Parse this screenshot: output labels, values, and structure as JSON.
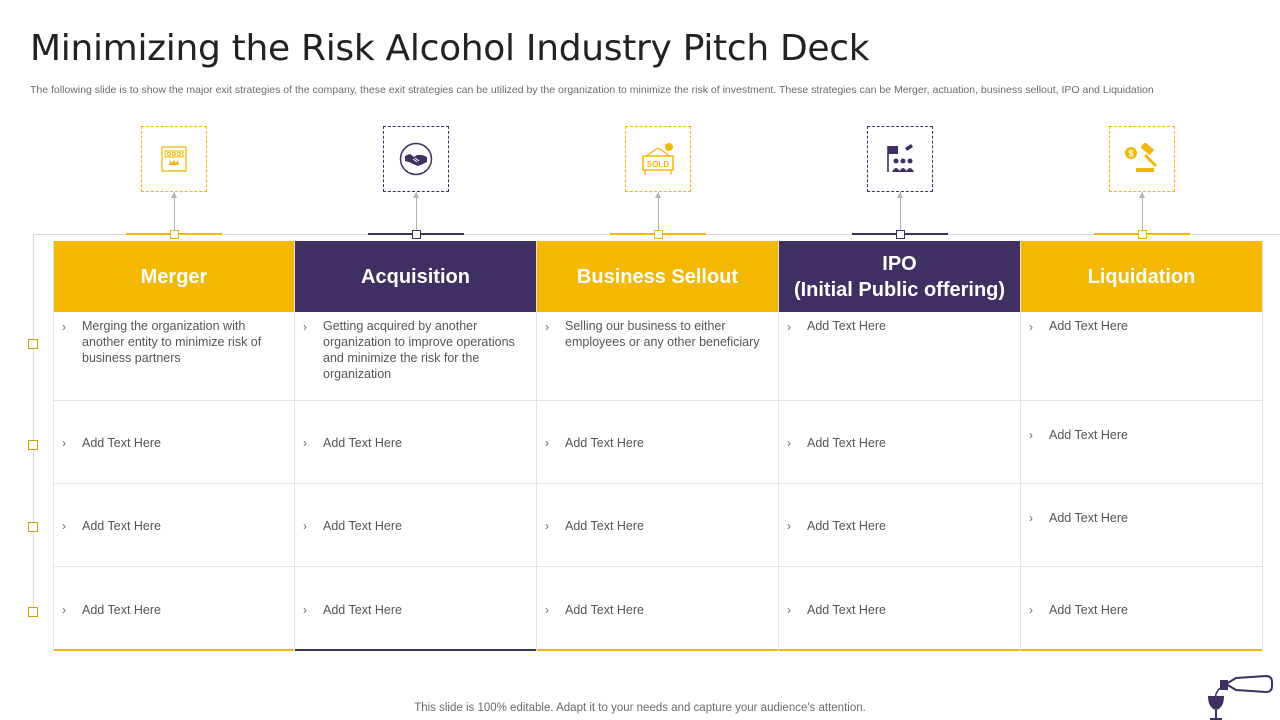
{
  "slide": {
    "title": "Minimizing the Risk Alcohol Industry Pitch Deck",
    "subtitle": "The following slide is to show the major exit strategies of the company, these exit strategies can be utilized by the organization to minimize the risk of investment. These strategies can be Merger, actuation, business sellout, IPO and Liquidation",
    "footer": "This slide is 100% editable. Adapt it to your needs and capture your audience's attention."
  },
  "colors": {
    "yellow": "#f5b800",
    "purple": "#3f2f63"
  },
  "columns": [
    {
      "header": "Merger",
      "icon": "merger-building-icon",
      "cells": [
        "Merging the organization with another entity to minimize risk of business partners",
        "Add Text Here",
        "Add Text Here",
        "Add Text Here"
      ]
    },
    {
      "header": "Acquisition",
      "icon": "handshake-icon",
      "cells": [
        "Getting acquired  by another organization to improve operations and minimize the risk for the organization",
        "Add Text Here",
        "Add Text Here",
        "Add Text Here"
      ]
    },
    {
      "header": "Business Sellout",
      "icon": "sold-sign-icon",
      "sold_label": "SOLD",
      "cells": [
        "Selling our business to either employees or any other beneficiary",
        "Add Text Here",
        "Add Text Here",
        "Add Text Here"
      ]
    },
    {
      "header_line1": "IPO",
      "header_line2": "(Initial Public offering)",
      "icon": "ipo-people-flag-icon",
      "cells": [
        "Add Text Here",
        "Add Text Here",
        "Add Text Here",
        "Add Text Here"
      ]
    },
    {
      "header": "Liquidation",
      "icon": "gavel-dollar-icon",
      "cells": [
        "Add Text Here",
        "Add Text Here",
        "Add Text Here",
        "Add Text Here"
      ]
    }
  ]
}
